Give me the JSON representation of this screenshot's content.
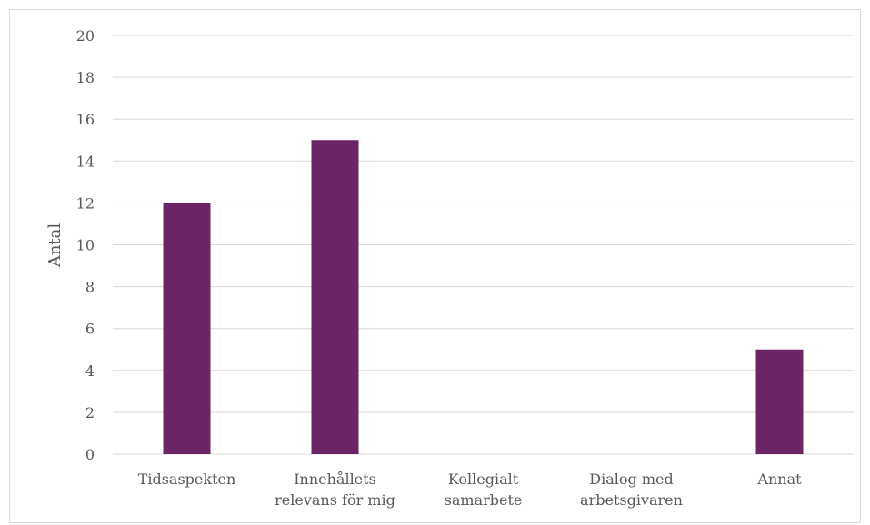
{
  "chart_data": {
    "type": "bar",
    "categories": [
      [
        "Tidsaspekten"
      ],
      [
        "Innehållets",
        "relevans för mig"
      ],
      [
        "Kollegialt",
        "samarbete"
      ],
      [
        "Dialog med",
        "arbetsgivaren"
      ],
      [
        "Annat"
      ]
    ],
    "values": [
      12,
      15,
      0,
      0,
      5
    ],
    "ylabel": "Antal",
    "ylim": [
      0,
      20
    ],
    "yticks": [
      0,
      2,
      4,
      6,
      8,
      10,
      12,
      14,
      16,
      18,
      20
    ],
    "grid": true,
    "bar_color": "#6b2466",
    "grid_color": "#d9d9d9"
  }
}
